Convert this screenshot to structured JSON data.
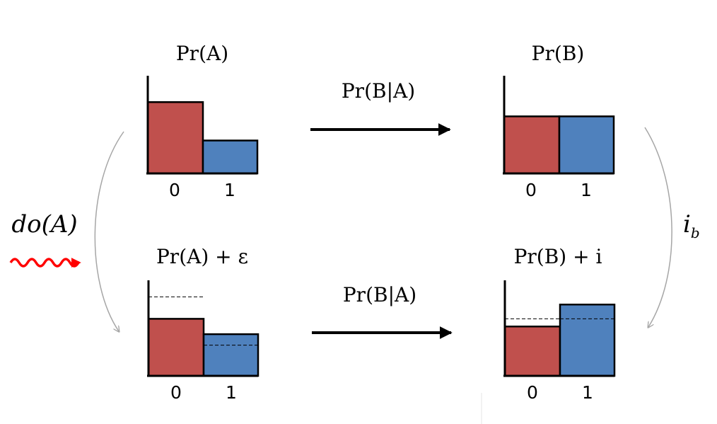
{
  "colors": {
    "red_bar": "#c0504d",
    "blue_bar": "#4f81bd",
    "axis": "#000000",
    "curve": "#a6a6a6",
    "squiggle": "#ff0000"
  },
  "panels": {
    "top_left": {
      "title": "Pr(A)",
      "ticks": [
        "0",
        "1"
      ],
      "values": [
        0.65,
        0.3
      ]
    },
    "top_right": {
      "title": "Pr(B)",
      "ticks": [
        "0",
        "1"
      ],
      "values": [
        0.52,
        0.52
      ]
    },
    "bottom_left": {
      "title": "Pr(A) + ε",
      "ticks": [
        "0",
        "1"
      ],
      "values": [
        0.52,
        0.38
      ],
      "dashed": [
        0.72,
        0.28
      ]
    },
    "bottom_right": {
      "title": "Pr(B) + i",
      "ticks": [
        "0",
        "1"
      ],
      "values": [
        0.45,
        0.65
      ],
      "dashed": [
        0.52,
        0.52
      ]
    }
  },
  "arrows": {
    "top": "Pr(B|A)",
    "bottom": "Pr(B|A)"
  },
  "left_label": "do(A)",
  "right_label": "i",
  "right_label_subscript": "b"
}
